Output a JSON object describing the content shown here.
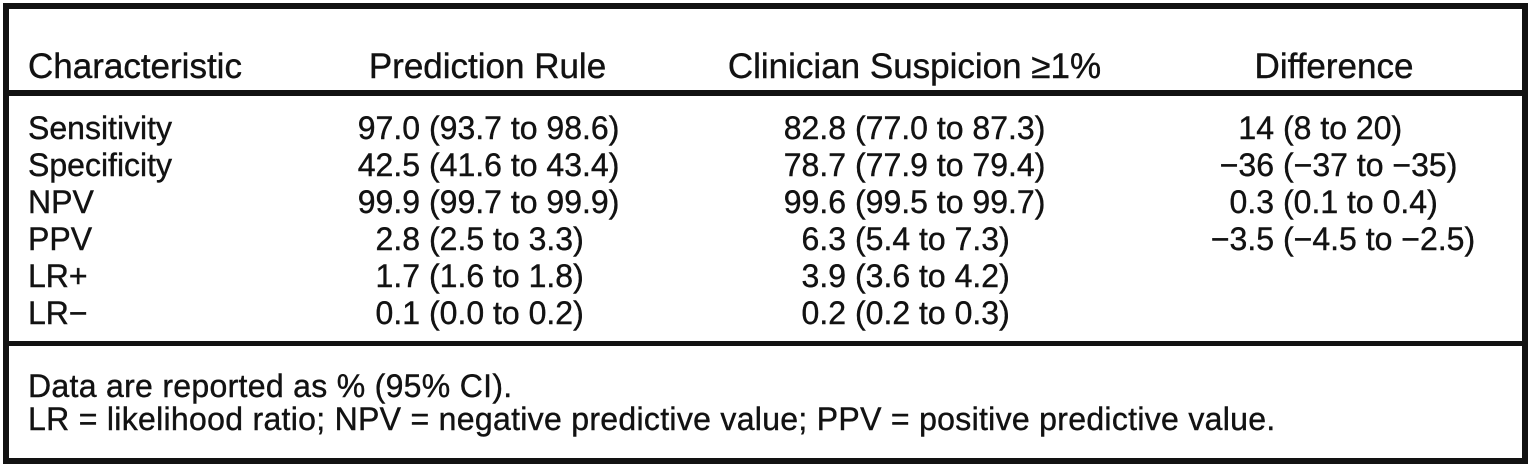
{
  "colors": {
    "ink": "#121212",
    "background": "#ffffff"
  },
  "table": {
    "columns": [
      "Characteristic",
      "Prediction Rule",
      "Clinician Suspicion ≥1%",
      "Difference"
    ],
    "rows": [
      {
        "label": "Sensitivity",
        "prediction_rule": {
          "val": "97.0",
          "ci": "(93.7 to 98.6)"
        },
        "clinician_suspicion": {
          "val": "82.8",
          "ci": "(77.0 to 87.3)"
        },
        "difference": {
          "val": "14",
          "ci": "(8 to 20)"
        }
      },
      {
        "label": "Specificity",
        "prediction_rule": {
          "val": "42.5",
          "ci": "(41.6 to 43.4)"
        },
        "clinician_suspicion": {
          "val": "78.7",
          "ci": "(77.9 to 79.4)"
        },
        "difference": {
          "val": "−36",
          "ci": "(−37 to −35)"
        }
      },
      {
        "label": "NPV",
        "prediction_rule": {
          "val": "99.9",
          "ci": "(99.7 to 99.9)"
        },
        "clinician_suspicion": {
          "val": "99.6",
          "ci": "(99.5 to 99.7)"
        },
        "difference": {
          "val": "0.3",
          "ci": "(0.1 to 0.4)"
        }
      },
      {
        "label": "PPV",
        "prediction_rule": {
          "val": "2.8",
          "ci": "(2.5 to 3.3)"
        },
        "clinician_suspicion": {
          "val": "6.3",
          "ci": "(5.4 to 7.3)"
        },
        "difference": {
          "val": "−3.5",
          "ci": "(−4.5 to −2.5)"
        }
      },
      {
        "label": "LR+",
        "prediction_rule": {
          "val": "1.7",
          "ci": "(1.6 to 1.8)"
        },
        "clinician_suspicion": {
          "val": "3.9",
          "ci": "(3.6 to 4.2)"
        },
        "difference": null
      },
      {
        "label": "LR−",
        "prediction_rule": {
          "val": "0.1",
          "ci": "(0.0 to 0.2)"
        },
        "clinician_suspicion": {
          "val": "0.2",
          "ci": "(0.2 to 0.3)"
        },
        "difference": null
      }
    ],
    "footnotes": [
      "Data are reported as % (95% CI).",
      "LR = likelihood ratio; NPV = negative predictive value; PPV = positive predictive value."
    ]
  }
}
